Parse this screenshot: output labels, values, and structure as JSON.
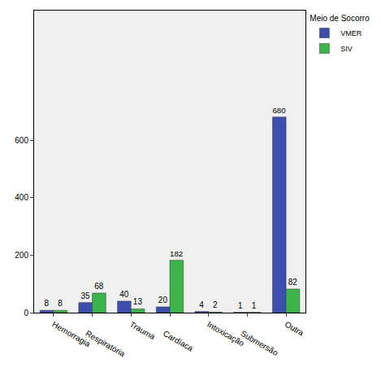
{
  "chart_data": {
    "type": "bar",
    "legend_title": "Meio de Socorro",
    "categories": [
      "Hemorragia",
      "Respiratória",
      "Trauma",
      "Cardíaca",
      "Intoxicação",
      "Submersão",
      "Outra"
    ],
    "series": [
      {
        "name": "VMER",
        "color": "#3d4fae",
        "values": [
          8,
          35,
          40,
          20,
          4,
          1,
          680
        ]
      },
      {
        "name": "SIV",
        "color": "#3bb54a",
        "values": [
          8,
          68,
          13,
          182,
          2,
          1,
          82
        ]
      }
    ],
    "ylim": [
      0,
      1050
    ],
    "yticks": [
      0,
      200,
      400,
      600
    ],
    "grid": false,
    "legend": "top-right",
    "data_labels": true
  }
}
